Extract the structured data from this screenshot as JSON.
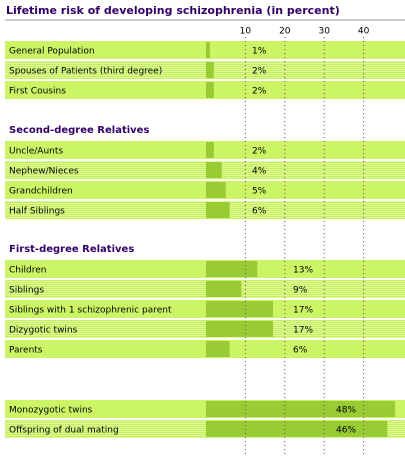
{
  "chart_data": {
    "type": "bar",
    "orientation": "horizontal",
    "title": "Lifetime risk of developing schizophrenia (in percent)",
    "color": "#99cc33",
    "xlim": [
      0,
      50
    ],
    "xticks": [
      10,
      20,
      30,
      40
    ],
    "groups": [
      {
        "categories": [
          "General Population",
          "Spouses of Patients (third degree)",
          "First Cousins"
        ],
        "values": [
          1,
          2,
          2
        ],
        "value_labels": [
          "1%",
          "2%",
          "2%"
        ]
      },
      {
        "title": "Second-degree Relatives",
        "categories": [
          "Uncle/Aunts",
          "Nephew/Nieces",
          "Grandchildren",
          "Half Siblings"
        ],
        "values": [
          2,
          4,
          5,
          6
        ],
        "value_labels": [
          "2%",
          "4%",
          "5%",
          "6%"
        ]
      },
      {
        "title": "First-degree Relatives",
        "categories": [
          "Children",
          "Siblings",
          "Siblings with 1 schizophrenic parent",
          "Dizygotic twins",
          "Parents"
        ],
        "values": [
          13,
          9,
          17,
          17,
          6
        ],
        "value_labels": [
          "13%",
          "9%",
          "17%",
          "17%",
          "6%"
        ]
      },
      {
        "categories": [
          "Monozygotic twins",
          "Offspring of dual mating"
        ],
        "values": [
          48,
          46
        ],
        "value_labels": [
          "48%",
          "46%"
        ]
      }
    ]
  }
}
